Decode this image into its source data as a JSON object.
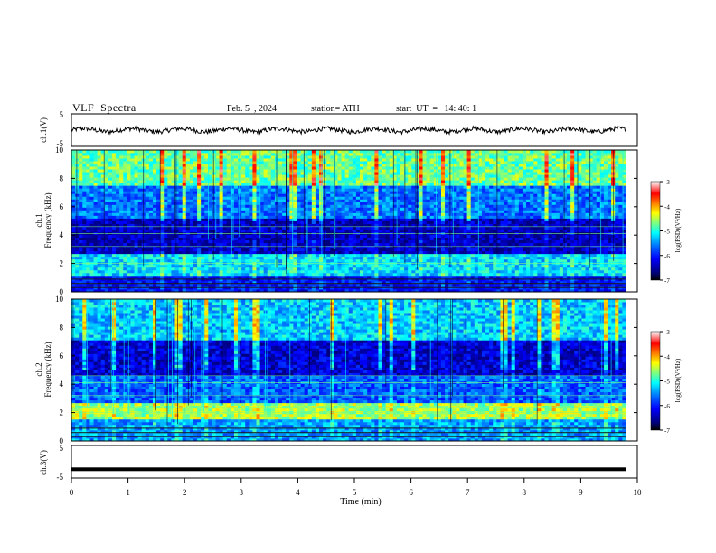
{
  "header": {
    "title": "VLF  Spectra",
    "date": "Feb. 5  , 2024",
    "station": "station= ATH",
    "start": "start  UT  =   14: 40: 1"
  },
  "colors": {
    "spectrum_scale": [
      "#00007f",
      "#0000ff",
      "#007fff",
      "#00ffff",
      "#7fff7f",
      "#ffff00",
      "#ff7f00",
      "#ff0000",
      "#ffffff"
    ]
  },
  "chart_data": [
    {
      "type": "line",
      "name": "ch1-waveform",
      "ylabel": "ch.1(V)",
      "ylim": [
        -5,
        5
      ],
      "yticks": [
        "5",
        "-5"
      ],
      "xlim": [
        0,
        10
      ],
      "description_values": {
        "baseline": 0,
        "amplitude": 1
      }
    },
    {
      "type": "heatmap",
      "name": "ch1-spectrogram",
      "ylabel": "ch.1\nFrequency  (kHz)",
      "ylim": [
        0,
        10
      ],
      "yticks": [
        "0",
        "2",
        "4",
        "6",
        "8",
        "10"
      ],
      "xlim": [
        0,
        10
      ],
      "data_end_min": 9.8,
      "colorbar": {
        "label": "log(PSD)(V²/Hz)",
        "range": [
          -7,
          -3
        ],
        "ticks": [
          "-3",
          "-4",
          "-5",
          "-6",
          "-7"
        ]
      },
      "bands_khz": [
        {
          "from": 0,
          "to": 1.2,
          "level": -6.3
        },
        {
          "from": 1.2,
          "to": 2.6,
          "level": -5.3
        },
        {
          "from": 2.6,
          "to": 5.2,
          "level": -6.7
        },
        {
          "from": 5.2,
          "to": 7.5,
          "level": -5.8
        },
        {
          "from": 7.5,
          "to": 10,
          "level": -4.8
        }
      ]
    },
    {
      "type": "heatmap",
      "name": "ch2-spectrogram",
      "ylabel": "ch.2\nFrequency  (kHz)",
      "ylim": [
        0,
        10
      ],
      "yticks": [
        "0",
        "2",
        "4",
        "6",
        "8",
        "10"
      ],
      "xlim": [
        0,
        10
      ],
      "data_end_min": 9.8,
      "colorbar": {
        "label": "log(PSD)(V²/Hz)",
        "range": [
          -7,
          -3
        ],
        "ticks": [
          "-3",
          "-4",
          "-5",
          "-6",
          "-7"
        ]
      },
      "bands_khz": [
        {
          "from": 0,
          "to": 1.5,
          "level": -5.6
        },
        {
          "from": 1.5,
          "to": 2.6,
          "level": -4.6
        },
        {
          "from": 2.6,
          "to": 4.6,
          "level": -5.9
        },
        {
          "from": 4.6,
          "to": 7.2,
          "level": -6.6
        },
        {
          "from": 7.2,
          "to": 10,
          "level": -5.4
        }
      ]
    },
    {
      "type": "line",
      "name": "ch3-waveform",
      "ylabel": "ch.3(V)",
      "ylim": [
        -5,
        5
      ],
      "yticks": [
        "5",
        "-5"
      ],
      "xlim": [
        0,
        10
      ],
      "xlabel": "Time  (min)",
      "xticks": [
        "0",
        "1",
        "2",
        "3",
        "4",
        "5",
        "6",
        "7",
        "8",
        "9",
        "10"
      ],
      "description_values": {
        "baseline": -2.3,
        "amplitude": 0
      }
    }
  ]
}
